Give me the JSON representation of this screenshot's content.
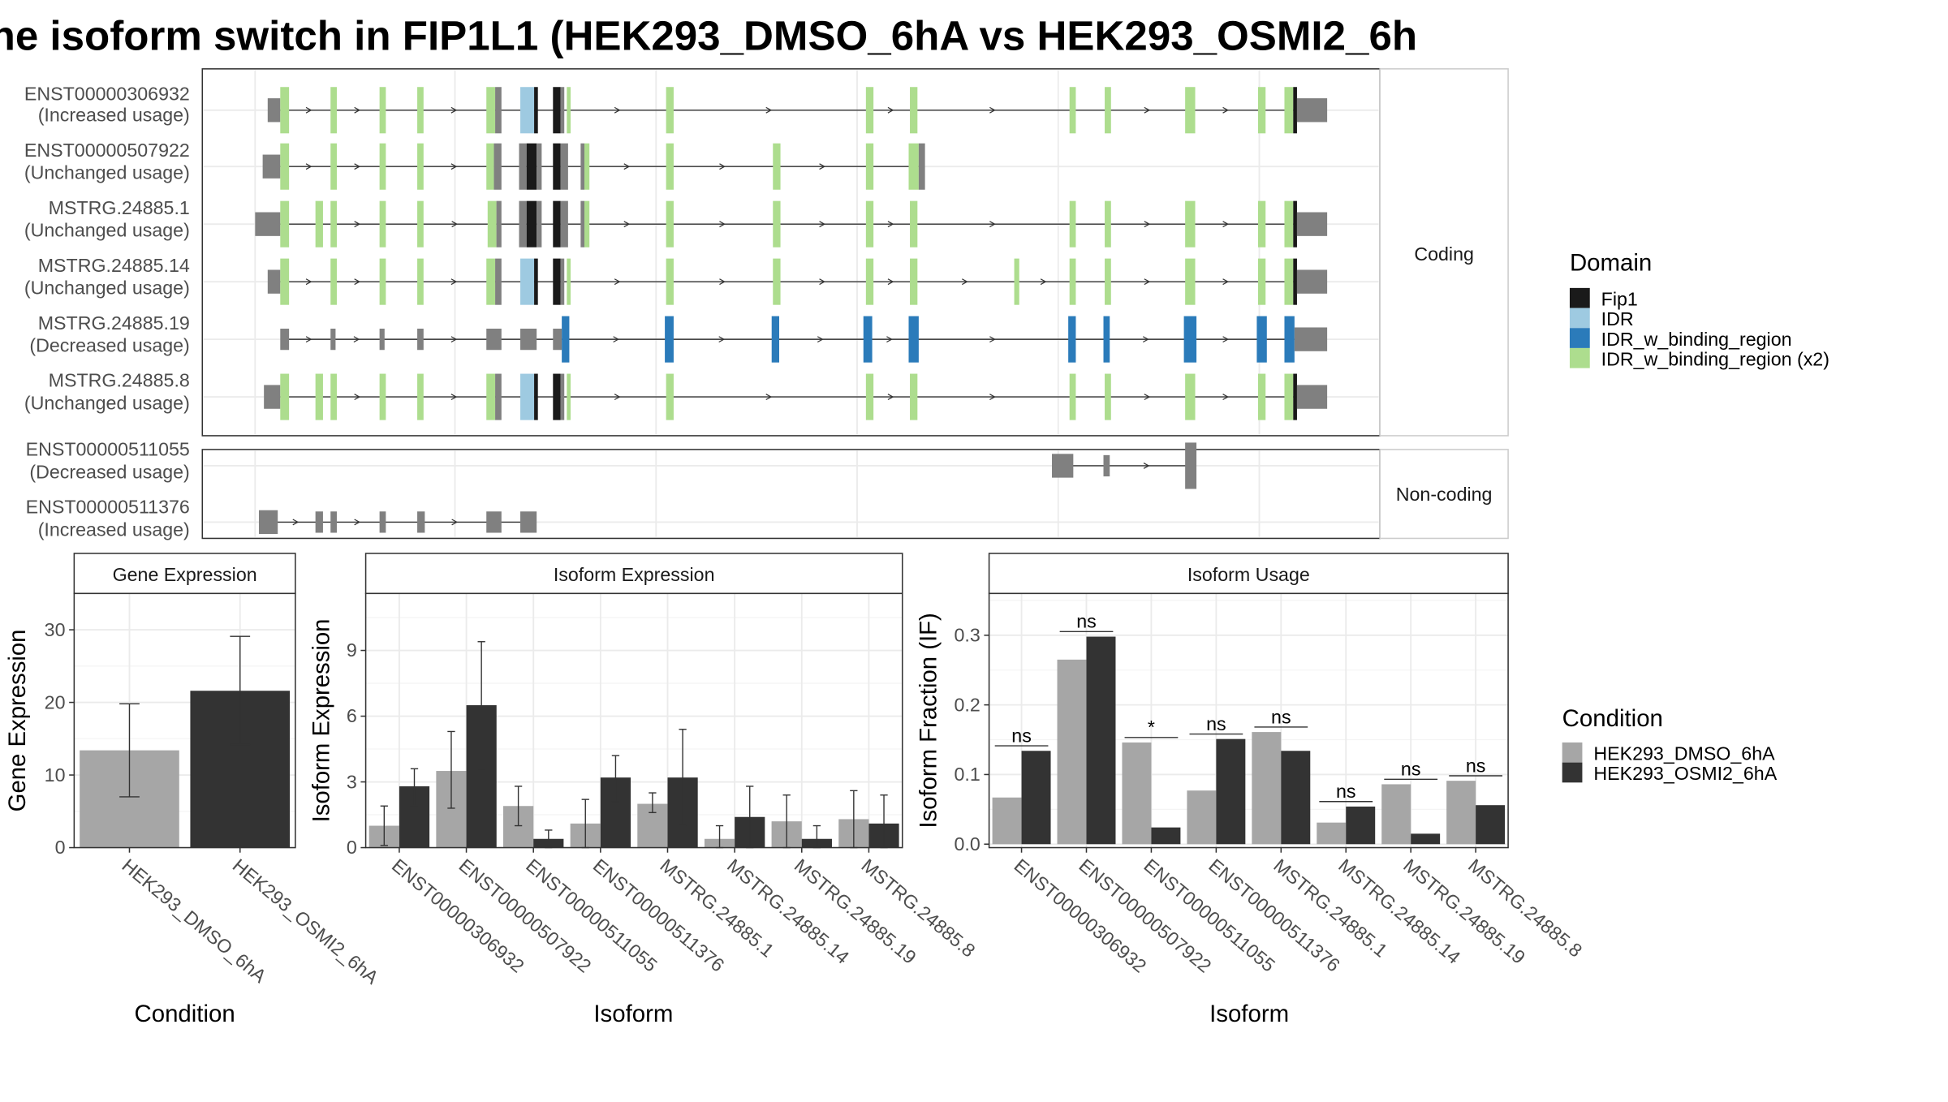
{
  "title": "ne isoform switch in FIP1L1 (HEK293_DMSO_6hA vs HEK293_OSMI2_6h",
  "colors": {
    "domain": {
      "Fip1": "#1a1a1a",
      "IDR": "#9ecae1",
      "IDR_w_binding_region": "#2b7bba",
      "IDR_w_binding_region (x2)": "#addd8e"
    },
    "noncoding": "#808080",
    "dmso": "#a6a6a6",
    "osmi": "#333333"
  },
  "legends": {
    "domain": {
      "title": "Domain",
      "items": [
        "Fip1",
        "IDR",
        "IDR_w_binding_region",
        "IDR_w_binding_region (x2)"
      ]
    },
    "condition": {
      "title": "Condition",
      "items": [
        "HEK293_DMSO_6hA",
        "HEK293_OSMI2_6hA"
      ]
    }
  },
  "strips": {
    "coding": "Coding",
    "noncoding": "Non-coding"
  },
  "transcripts": {
    "coding": [
      {
        "name": "ENST00000306932",
        "usage": "(Increased usage)"
      },
      {
        "name": "ENST00000507922",
        "usage": "(Unchanged usage)"
      },
      {
        "name": "MSTRG.24885.1",
        "usage": "(Unchanged usage)"
      },
      {
        "name": "MSTRG.24885.14",
        "usage": "(Unchanged usage)"
      },
      {
        "name": "MSTRG.24885.19",
        "usage": "(Decreased usage)"
      },
      {
        "name": "MSTRG.24885.8",
        "usage": "(Unchanged usage)"
      }
    ],
    "noncoding": [
      {
        "name": "ENST00000511055",
        "usage": "(Decreased usage)"
      },
      {
        "name": "ENST00000511376",
        "usage": "(Increased usage)"
      }
    ]
  },
  "chart_data": [
    {
      "type": "bar",
      "title": "Gene Expression",
      "xlabel": "Condition",
      "ylabel": "Gene Expression",
      "categories": [
        "HEK293_DMSO_6hA",
        "HEK293_OSMI2_6hA"
      ],
      "values": [
        13.4,
        21.6
      ],
      "error_low": [
        7.0,
        14.2
      ],
      "error_high": [
        19.8,
        29.1
      ],
      "ylim": [
        0,
        35
      ],
      "yticks": [
        0,
        10,
        20,
        30
      ]
    },
    {
      "type": "bar",
      "title": "Isoform Expression",
      "xlabel": "Isoform",
      "ylabel": "Isoform Expression",
      "categories": [
        "ENST00000306932",
        "ENST00000507922",
        "ENST00000511055",
        "ENST00000511376",
        "MSTRG.24885.1",
        "MSTRG.24885.14",
        "MSTRG.24885.19",
        "MSTRG.24885.8"
      ],
      "series": [
        {
          "name": "HEK293_DMSO_6hA",
          "values": [
            1.0,
            3.5,
            1.9,
            1.1,
            2.0,
            0.4,
            1.2,
            1.3
          ],
          "error_low": [
            0.1,
            1.8,
            1.0,
            0.0,
            1.6,
            0.0,
            0.0,
            0.0
          ],
          "error_high": [
            1.9,
            5.3,
            2.8,
            2.2,
            2.5,
            1.0,
            2.4,
            2.6
          ]
        },
        {
          "name": "HEK293_OSMI2_6hA",
          "values": [
            2.8,
            6.5,
            0.4,
            3.2,
            3.2,
            1.4,
            0.4,
            1.1
          ],
          "error_low": [
            1.9,
            3.6,
            0.0,
            2.1,
            1.0,
            0.0,
            0.0,
            0.0
          ],
          "error_high": [
            3.6,
            9.4,
            0.8,
            4.2,
            5.4,
            2.8,
            1.0,
            2.4
          ]
        }
      ],
      "ylim": [
        0,
        11.6
      ],
      "yticks": [
        0,
        3,
        6,
        9
      ]
    },
    {
      "type": "bar",
      "title": "Isoform Usage",
      "xlabel": "Isoform",
      "ylabel": "Isoform Fraction (IF)",
      "categories": [
        "ENST00000306932",
        "ENST00000507922",
        "ENST00000511055",
        "ENST00000511376",
        "MSTRG.24885.1",
        "MSTRG.24885.14",
        "MSTRG.24885.19",
        "MSTRG.24885.8"
      ],
      "series": [
        {
          "name": "HEK293_DMSO_6hA",
          "values": [
            0.067,
            0.265,
            0.146,
            0.077,
            0.161,
            0.031,
            0.086,
            0.091
          ]
        },
        {
          "name": "HEK293_OSMI2_6hA",
          "values": [
            0.134,
            0.298,
            0.024,
            0.151,
            0.134,
            0.054,
            0.015,
            0.056
          ]
        }
      ],
      "significance": [
        "ns",
        "ns",
        "*",
        "ns",
        "ns",
        "ns",
        "ns",
        "ns"
      ],
      "ylim": [
        -0.005,
        0.36
      ],
      "yticks": [
        0.0,
        0.1,
        0.2,
        0.3
      ]
    }
  ]
}
